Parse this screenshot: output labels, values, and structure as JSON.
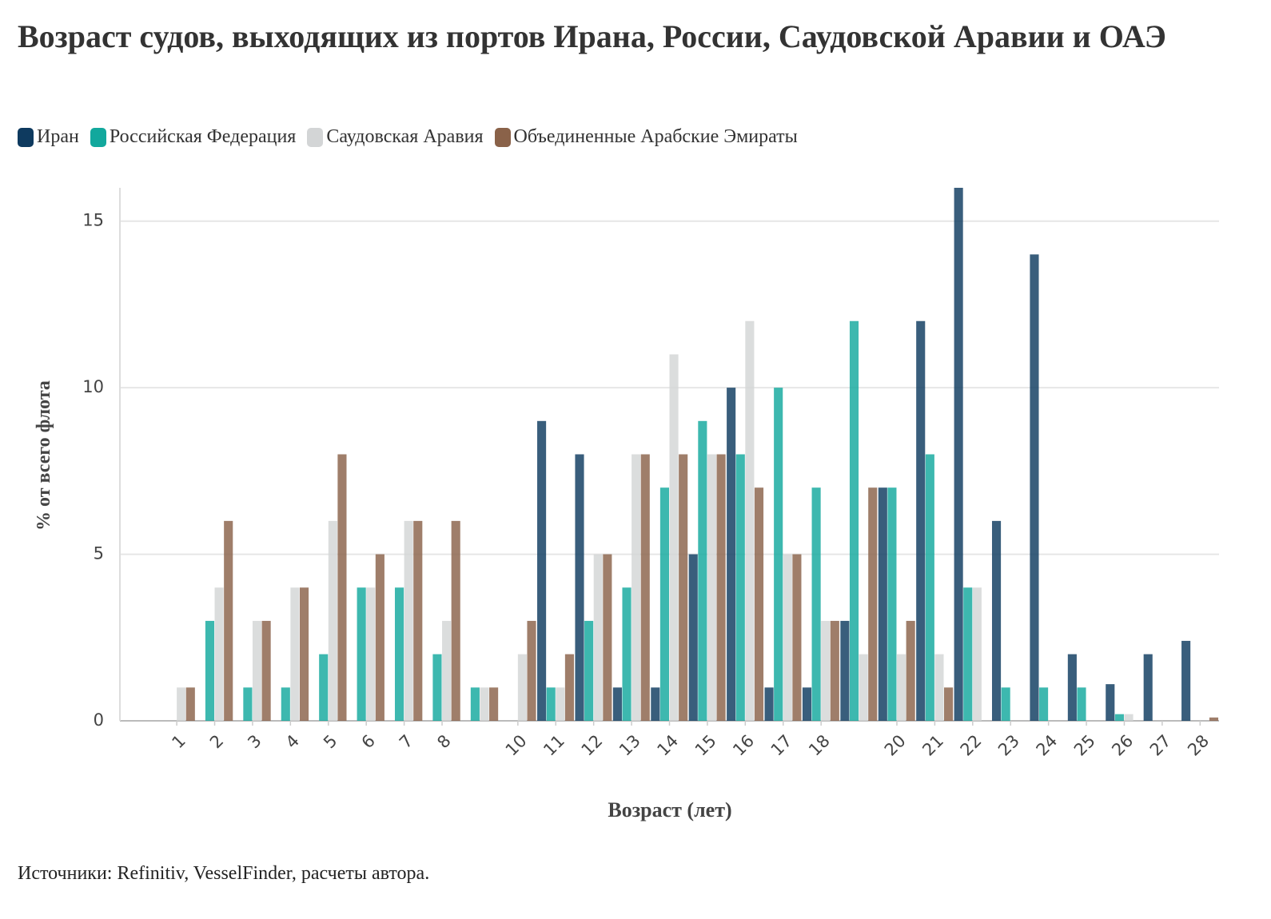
{
  "chart_data": {
    "type": "bar",
    "title": "Возраст судов, выходящих из портов Ирана, России, Саудовской Аравии и ОАЭ",
    "xlabel": "Возраст (лет)",
    "ylabel": "% от всего флота",
    "source": "Источники: Refinitiv, VesselFinder, расчеты автора.",
    "categories": [
      null,
      "1",
      "2",
      "3",
      "4",
      "5",
      "6",
      "7",
      "8",
      null,
      "10",
      "11",
      "12",
      "13",
      "14",
      "15",
      "16",
      "17",
      "18",
      null,
      "20",
      "21",
      "22",
      "23",
      "24",
      "25",
      "26",
      "27",
      "28"
    ],
    "series": [
      {
        "name": "Иран",
        "color": "#0e3a5f",
        "values": [
          null,
          null,
          null,
          null,
          null,
          null,
          null,
          null,
          null,
          null,
          null,
          9,
          8,
          1,
          1,
          5,
          10,
          1,
          1,
          3,
          7,
          12,
          16,
          6,
          14,
          2,
          1.1,
          2,
          2.4
        ]
      },
      {
        "name": "Российская Федерация",
        "color": "#12a89d",
        "values": [
          null,
          null,
          3,
          1,
          1,
          2,
          4,
          4,
          2,
          1,
          null,
          1,
          3,
          4,
          7,
          9,
          8,
          10,
          7,
          12,
          7,
          8,
          4,
          1,
          1,
          1,
          0.2,
          null,
          null
        ]
      },
      {
        "name": "Саудовская Аравия",
        "color": "#d3d5d6",
        "values": [
          null,
          1,
          4,
          3,
          4,
          6,
          4,
          6,
          3,
          1,
          2,
          1,
          5,
          8,
          11,
          8,
          12,
          5,
          3,
          2,
          2,
          2,
          4,
          null,
          null,
          null,
          0.2,
          null,
          null
        ]
      },
      {
        "name": "Объединенные Арабские Эмираты",
        "color": "#8a6249",
        "values": [
          null,
          1,
          6,
          3,
          4,
          8,
          5,
          6,
          6,
          1,
          3,
          2,
          5,
          8,
          8,
          8,
          7,
          5,
          3,
          7,
          3,
          1,
          null,
          null,
          null,
          null,
          null,
          null,
          0.1
        ]
      }
    ],
    "ylim": [
      0,
      16
    ],
    "yticks": [
      0,
      5,
      10,
      15
    ],
    "grid": true
  }
}
